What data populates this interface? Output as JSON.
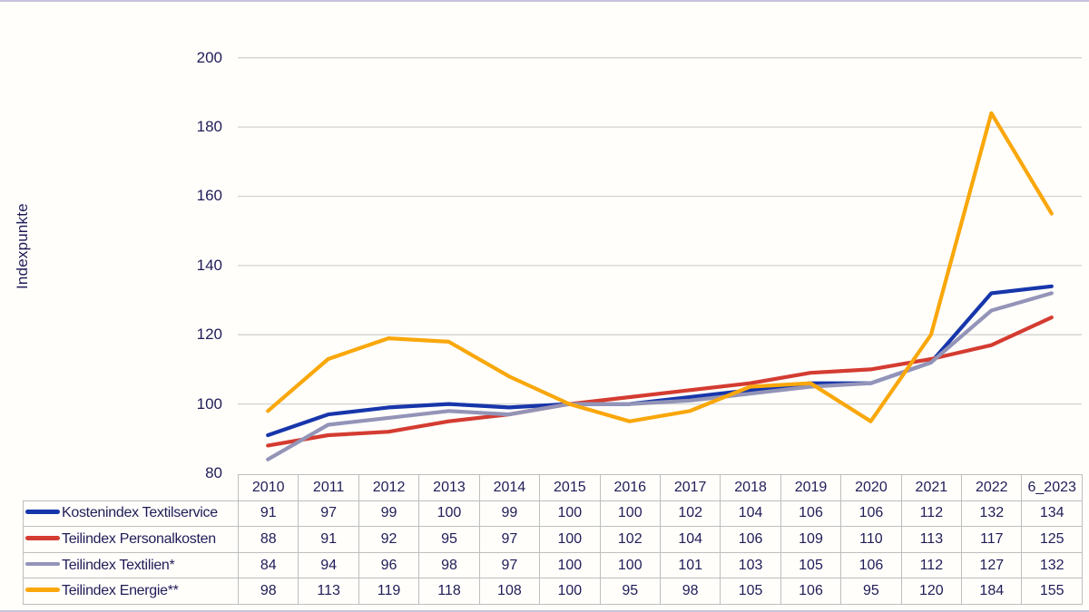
{
  "y_axis_title": "Indexpunkte",
  "colors": {
    "text": "#201c57",
    "gridline": "#d2d2d2",
    "table_border": "#bebebe",
    "frame_border": "#c7c3dd",
    "background": "#fffefb"
  },
  "chart_data": {
    "type": "line",
    "title": "",
    "xlabel": "",
    "ylabel": "Indexpunkte",
    "ylim": [
      80,
      200
    ],
    "yticks": [
      200,
      180,
      160,
      140,
      120,
      100,
      80
    ],
    "grid": true,
    "legend_position": "table-left",
    "categories": [
      "2010",
      "2011",
      "2012",
      "2013",
      "2014",
      "2015",
      "2016",
      "2017",
      "2018",
      "2019",
      "2020",
      "2021",
      "2022",
      "6_2023"
    ],
    "series": [
      {
        "name": "Kostenindex Textilservice",
        "color": "#1736ab",
        "values": [
          91,
          97,
          99,
          100,
          99,
          100,
          100,
          102,
          104,
          106,
          106,
          112,
          132,
          134
        ]
      },
      {
        "name": "Teilindex Personalkosten",
        "color": "#d43c31",
        "values": [
          88,
          91,
          92,
          95,
          97,
          100,
          102,
          104,
          106,
          109,
          110,
          113,
          117,
          125
        ]
      },
      {
        "name": "Teilindex Textilien*",
        "color": "#9394b7",
        "values": [
          84,
          94,
          96,
          98,
          97,
          100,
          100,
          101,
          103,
          105,
          106,
          112,
          127,
          132
        ]
      },
      {
        "name": "Teilindex Energie**",
        "color": "#f9a70b",
        "values": [
          98,
          113,
          119,
          118,
          108,
          100,
          95,
          98,
          105,
          106,
          95,
          120,
          184,
          155
        ]
      }
    ]
  }
}
